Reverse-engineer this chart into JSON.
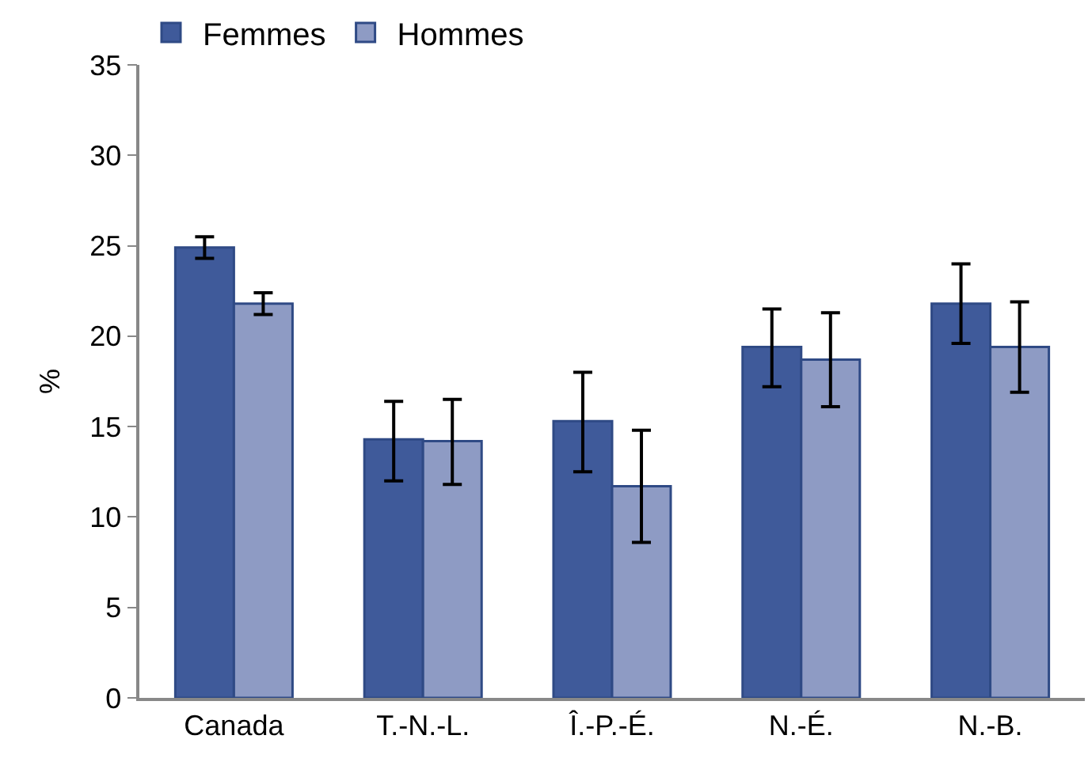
{
  "chart_data": {
    "type": "bar",
    "ylabel": "%",
    "categories": [
      "Canada",
      "T.-N.-L.",
      "Î.-P.-É.",
      "N.-É.",
      "N.-B."
    ],
    "series": [
      {
        "name": "Femmes",
        "color": "#3f5a9a",
        "values": [
          24.9,
          14.3,
          15.3,
          19.4,
          21.8
        ],
        "errors": [
          [
            24.3,
            25.5
          ],
          [
            12.0,
            16.4
          ],
          [
            12.5,
            18.0
          ],
          [
            17.2,
            21.5
          ],
          [
            19.6,
            24.0
          ]
        ]
      },
      {
        "name": "Hommes",
        "color": "#8e9bc4",
        "values": [
          21.8,
          14.2,
          11.7,
          18.7,
          19.4
        ],
        "errors": [
          [
            21.2,
            22.4
          ],
          [
            11.8,
            16.5
          ],
          [
            8.6,
            14.8
          ],
          [
            16.1,
            21.3
          ],
          [
            16.9,
            21.9
          ]
        ]
      }
    ],
    "ylim": [
      0,
      35
    ],
    "yticks": [
      0,
      5,
      10,
      15,
      20,
      25,
      30,
      35
    ],
    "legend": "top"
  }
}
